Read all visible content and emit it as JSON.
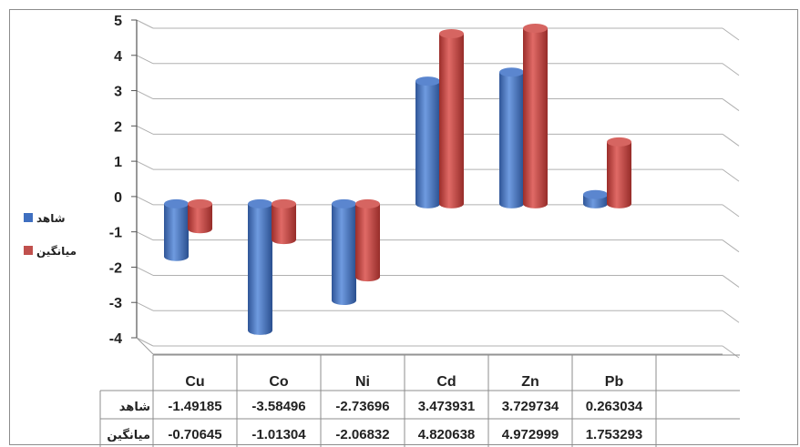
{
  "chart_data": {
    "type": "bar",
    "categories": [
      "Cu",
      "Co",
      "Ni",
      "Cd",
      "Zn",
      "Pb"
    ],
    "series": [
      {
        "name": "شاهد",
        "color": "#3f6fc0",
        "values": [
          -1.49185,
          -3.58496,
          -2.73696,
          3.473931,
          3.729734,
          0.263034
        ]
      },
      {
        "name": "میانگین",
        "color": "#c0504d",
        "values": [
          -0.70645,
          -1.01304,
          -2.06832,
          4.820638,
          4.972999,
          1.753293
        ]
      }
    ],
    "ylim": [
      -4,
      5
    ],
    "y_ticks": [
      5,
      4,
      3,
      2,
      1,
      0,
      -1,
      -2,
      -3,
      -4
    ],
    "table_cells": [
      [
        "-1.49185",
        "-3.58496",
        "-2.73696",
        "3.473931",
        "3.729734",
        "0.263034"
      ],
      [
        "-0.70645",
        "-1.01304",
        "-2.06832",
        "4.820638",
        "4.972999",
        "1.753293"
      ]
    ],
    "grid": true,
    "legend_position": "left",
    "data_table": true
  }
}
